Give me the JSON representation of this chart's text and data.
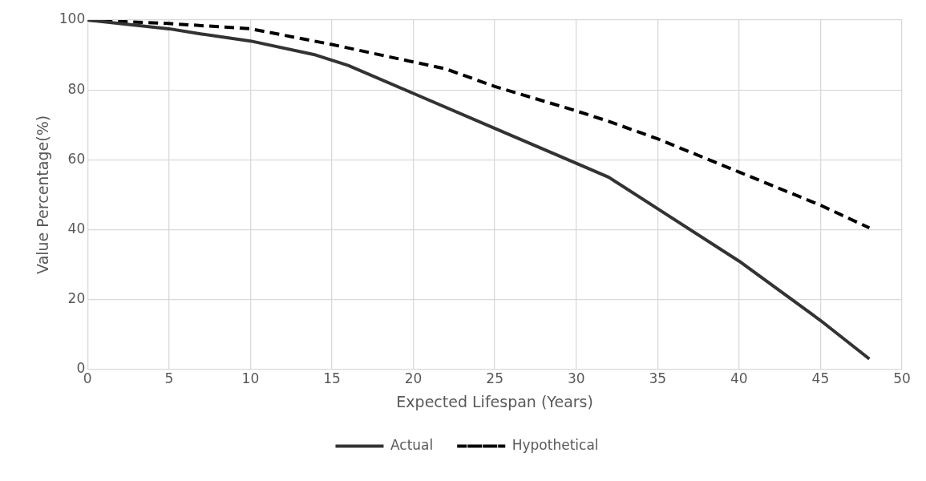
{
  "chart_data": {
    "type": "line",
    "xlabel": "Expected Lifespan (Years)",
    "ylabel": "Value Percentage(%)",
    "xlim": [
      0,
      50
    ],
    "xticks": [
      0,
      5,
      10,
      15,
      20,
      25,
      30,
      35,
      40,
      45,
      50
    ],
    "ylim": [
      0,
      100
    ],
    "yticks": [
      0,
      20,
      40,
      60,
      80,
      100
    ],
    "grid": true,
    "legend": "bottom",
    "marker": "none",
    "series": [
      {
        "name": "Actual",
        "color": "#333333",
        "line_style": "solid",
        "x": [
          0,
          5,
          7,
          10,
          14,
          16,
          20,
          25,
          30,
          32,
          35,
          40,
          45,
          48
        ],
        "values": [
          100,
          97.5,
          96,
          94,
          90,
          87,
          79,
          69,
          59,
          55,
          46,
          31,
          14,
          3
        ]
      },
      {
        "name": "Hypothetical",
        "color": "#000000",
        "line_style": "dashed",
        "x": [
          0,
          5,
          10,
          15,
          20,
          22,
          25,
          30,
          32,
          35,
          40,
          45,
          48
        ],
        "values": [
          100,
          99,
          97.5,
          93,
          88,
          86,
          81,
          74,
          71,
          66,
          56.5,
          47,
          40.5
        ]
      }
    ]
  }
}
